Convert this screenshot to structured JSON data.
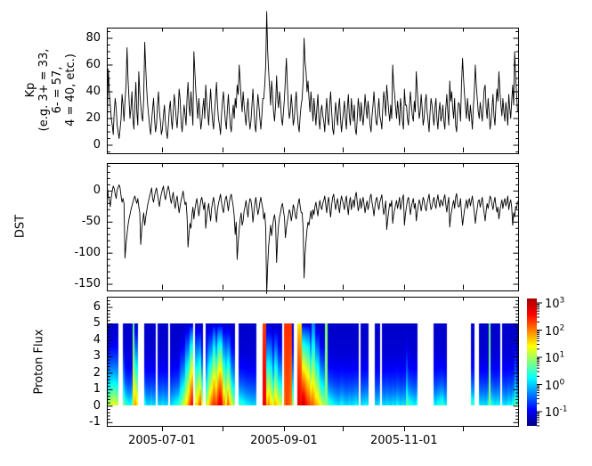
{
  "figure": {
    "background": "#ffffff",
    "line_color": "#000000"
  },
  "x_axis": {
    "start_date": "2005-06-03",
    "days_total": 209,
    "tick_labels": [
      "2005-07-01",
      "2005-09-01",
      "2005-11-01"
    ],
    "labeled_tick_days": [
      28,
      90,
      151
    ],
    "unlabeled_tick_days": [
      59,
      120,
      181
    ]
  },
  "chart_data": [
    {
      "id": "kp",
      "type": "line",
      "ylabel_lines": [
        "Kp",
        "(e.g. 3+ = 33,",
        "6- = 57,",
        "4 = 40, etc.)"
      ],
      "ylim": [
        -6,
        88
      ],
      "yticks": [
        0,
        20,
        40,
        60,
        80
      ],
      "ytick_minor_step": 5,
      "points_per_day": 2,
      "values": [
        22,
        57,
        40,
        30,
        20,
        15,
        8,
        25,
        35,
        28,
        15,
        10,
        5,
        12,
        20,
        38,
        30,
        18,
        33,
        45,
        73,
        50,
        35,
        20,
        28,
        40,
        20,
        12,
        30,
        47,
        25,
        15,
        55,
        40,
        30,
        22,
        18,
        35,
        77,
        58,
        42,
        30,
        22,
        14,
        8,
        18,
        27,
        35,
        20,
        10,
        15,
        30,
        40,
        25,
        18,
        8,
        12,
        22,
        30,
        17,
        10,
        5,
        15,
        27,
        33,
        20,
        12,
        25,
        38,
        30,
        20,
        13,
        25,
        42,
        35,
        18,
        10,
        20,
        30,
        23,
        15,
        35,
        47,
        30,
        22,
        40,
        28,
        15,
        70,
        55,
        40,
        30,
        20,
        35,
        25,
        12,
        18,
        28,
        35,
        20,
        45,
        33,
        25,
        15,
        30,
        42,
        28,
        18,
        12,
        25,
        35,
        47,
        30,
        20,
        15,
        8,
        22,
        33,
        40,
        28,
        18,
        12,
        27,
        38,
        25,
        15,
        10,
        22,
        30,
        20,
        35,
        28,
        45,
        38,
        60,
        48,
        35,
        25,
        40,
        30,
        22,
        15,
        28,
        35,
        20,
        12,
        18,
        30,
        42,
        28,
        15,
        10,
        25,
        38,
        30,
        20,
        12,
        22,
        35,
        35,
        45,
        60,
        100,
        70,
        55,
        42,
        30,
        48,
        38,
        25,
        18,
        30,
        52,
        35,
        28,
        40,
        32,
        20,
        15,
        25,
        35,
        50,
        65,
        45,
        30,
        20,
        25,
        38,
        28,
        15,
        20,
        32,
        40,
        25,
        15,
        10,
        22,
        30,
        35,
        48,
        80,
        62,
        55,
        40,
        48,
        35,
        25,
        40,
        30,
        18,
        35,
        25,
        15,
        28,
        38,
        20,
        12,
        25,
        30,
        22,
        18,
        10,
        25,
        35,
        20,
        15,
        30,
        40,
        25,
        12,
        8,
        20,
        32,
        24,
        15,
        28,
        35,
        20,
        10,
        18,
        25,
        33,
        20,
        12,
        28,
        38,
        22,
        15,
        35,
        25,
        18,
        30,
        12,
        8,
        20,
        35,
        28,
        18,
        32,
        22,
        15,
        25,
        38,
        28,
        20,
        33,
        25,
        15,
        10,
        22,
        30,
        40,
        28,
        18,
        15,
        25,
        35,
        22,
        18,
        12,
        28,
        40,
        33,
        22,
        45,
        35,
        25,
        18,
        30,
        20,
        60,
        45,
        38,
        28,
        20,
        33,
        25,
        15,
        35,
        28,
        18,
        12,
        42,
        30,
        30,
        20,
        15,
        28,
        40,
        30,
        22,
        18,
        33,
        25,
        55,
        42,
        30,
        20,
        25,
        38,
        28,
        15,
        20,
        32,
        38,
        25,
        18,
        10,
        25,
        35,
        30,
        22,
        15,
        28,
        35,
        20,
        12,
        25,
        32,
        18,
        22,
        30,
        18,
        12,
        28,
        38,
        25,
        15,
        48,
        33,
        40,
        28,
        20,
        35,
        15,
        10,
        25,
        32,
        30,
        18,
        45,
        65,
        50,
        38,
        28,
        20,
        35,
        25,
        18,
        30,
        22,
        12,
        28,
        40,
        60,
        45,
        35,
        25,
        20,
        32,
        25,
        18,
        30,
        42,
        45,
        28,
        20,
        35,
        25,
        12,
        18,
        28,
        38,
        22,
        15,
        30,
        42,
        33,
        55,
        40,
        30,
        22,
        35,
        25,
        18,
        32,
        25,
        15,
        38,
        28,
        20,
        33,
        45,
        30,
        70,
        52,
        38,
        25
      ]
    },
    {
      "id": "dst",
      "type": "line",
      "ylabel": "DST",
      "ylim": [
        -160,
        45
      ],
      "yticks": [
        0,
        -50,
        -100,
        -150
      ],
      "ytick_minor_step": 10,
      "points_per_day": 2,
      "values": [
        5,
        -8,
        -15,
        -25,
        -10,
        0,
        8,
        4,
        -5,
        -12,
        2,
        6,
        10,
        5,
        -8,
        -18,
        -12,
        -20,
        -108,
        -85,
        -70,
        -55,
        -45,
        -38,
        -30,
        -24,
        -18,
        -12,
        -8,
        -15,
        -20,
        -12,
        -25,
        -35,
        -86,
        -62,
        -48,
        -35,
        -55,
        -42,
        -32,
        -22,
        -15,
        -8,
        -2,
        5,
        -12,
        -18,
        -8,
        0,
        5,
        -5,
        -15,
        -25,
        -12,
        -4,
        2,
        8,
        -6,
        -14,
        -5,
        2,
        8,
        0,
        -12,
        -20,
        -10,
        -2,
        -18,
        -28,
        -15,
        -8,
        -22,
        -35,
        -25,
        -15,
        -8,
        0,
        -12,
        -22,
        -18,
        -40,
        -90,
        -68,
        -52,
        -60,
        -38,
        -26,
        -45,
        -30,
        -20,
        -12,
        -25,
        -40,
        -28,
        -15,
        -10,
        -20,
        -30,
        -18,
        -60,
        -42,
        -30,
        -20,
        -35,
        -48,
        -28,
        -18,
        -10,
        -22,
        -35,
        -50,
        -30,
        -20,
        -12,
        -5,
        -18,
        -28,
        -35,
        -22,
        -12,
        -8,
        -20,
        -32,
        -18,
        -10,
        -5,
        -15,
        -25,
        -40,
        -70,
        -50,
        -110,
        -82,
        -62,
        -45,
        -35,
        -55,
        -48,
        -32,
        -25,
        -15,
        -30,
        -42,
        -22,
        -12,
        -15,
        -28,
        -50,
        -35,
        -20,
        -10,
        -25,
        -38,
        -30,
        -18,
        -10,
        -20,
        -28,
        -45,
        -35,
        -60,
        -165,
        -120,
        -88,
        -70,
        -55,
        -72,
        -58,
        -45,
        -38,
        -52,
        -115,
        -78,
        -55,
        -42,
        -35,
        -25,
        -20,
        -32,
        -42,
        -75,
        -60,
        -48,
        -40,
        -30,
        -35,
        -48,
        -38,
        -22,
        -28,
        -40,
        -45,
        -30,
        -20,
        -12,
        -25,
        -35,
        -35,
        -60,
        -140,
        -100,
        -80,
        -62,
        -50,
        -55,
        -42,
        -32,
        -45,
        -30,
        -38,
        -25,
        -18,
        -30,
        -40,
        -25,
        -15,
        -25,
        -30,
        -20,
        -15,
        -8,
        -22,
        -35,
        -18,
        -10,
        -28,
        -42,
        -22,
        -10,
        -5,
        -18,
        -30,
        -20,
        -12,
        -25,
        -35,
        -18,
        -8,
        -15,
        -22,
        -30,
        -16,
        -8,
        -25,
        -38,
        -18,
        -10,
        -30,
        -20,
        -14,
        -26,
        -8,
        -2,
        -18,
        -32,
        -24,
        -12,
        -28,
        -18,
        -10,
        -22,
        -35,
        -24,
        -16,
        -30,
        -22,
        -10,
        -5,
        -18,
        -28,
        -40,
        -24,
        -14,
        -10,
        -22,
        -30,
        -18,
        -12,
        -6,
        -25,
        -38,
        -28,
        -16,
        -62,
        -45,
        -32,
        -20,
        -25,
        -15,
        -52,
        -38,
        -30,
        -22,
        -15,
        -28,
        -20,
        -10,
        -30,
        -22,
        -12,
        -6,
        -55,
        -38,
        -25,
        -15,
        -10,
        -22,
        -38,
        -26,
        -18,
        -12,
        -28,
        -20,
        -48,
        -34,
        -24,
        -14,
        -20,
        -32,
        -22,
        -10,
        -15,
        -26,
        -32,
        -20,
        -12,
        -5,
        -20,
        -30,
        -25,
        -16,
        -10,
        -22,
        -28,
        -15,
        -6,
        -18,
        -26,
        -14,
        -18,
        -24,
        -12,
        -6,
        -22,
        -34,
        -20,
        -10,
        -58,
        -40,
        -32,
        -22,
        -15,
        -28,
        -10,
        -4,
        -20,
        -26,
        -24,
        -12,
        -35,
        -55,
        -42,
        -30,
        -22,
        -14,
        -28,
        -18,
        -12,
        -24,
        -16,
        -8,
        -22,
        -34,
        -52,
        -38,
        -28,
        -16,
        -14,
        -26,
        -18,
        -10,
        -24,
        -36,
        -48,
        -32,
        -20,
        -28,
        -18,
        -8,
        -12,
        -22,
        -30,
        -18,
        -10,
        -24,
        -34,
        -26,
        -45,
        -32,
        -22,
        -14,
        -28,
        -18,
        -12,
        -24,
        -18,
        -8,
        -30,
        -20,
        -14,
        -26,
        -55,
        -35,
        -42,
        -25,
        -28,
        -16
      ]
    },
    {
      "id": "proton_flux",
      "type": "heatmap",
      "ylabel": "Proton Flux",
      "ylim": [
        -1.2,
        6.65
      ],
      "yticks": [
        -1,
        0,
        1,
        2,
        3,
        4,
        5,
        6
      ],
      "ytick_minor_step": 0.2,
      "strip_y_range": [
        0,
        5
      ],
      "value_scale": "log10",
      "color_range_log10": [
        -1.5,
        3.2
      ],
      "colormap": "jet",
      "top_log10_default": -1.15,
      "top_overrides": {
        "13": 0.7,
        "79": 2.3,
        "80": 2.3,
        "90": 2.4,
        "91": 2.4,
        "92": 2.4,
        "93": 2.4,
        "97": 1.5,
        "98": 1.5,
        "104": -0.3,
        "105": -0.3,
        "111": 0.9,
        "194": 0.8
      },
      "bottom_log10_by_day": [
        1.0,
        1.2,
        1.3,
        1.4,
        1.3,
        1.2,
        null,
        null,
        0.8,
        0.6,
        0.4,
        0.3,
        0.5,
        1.6,
        1.9,
        1.6,
        null,
        null,
        null,
        0.4,
        0.1,
        0.1,
        0.2,
        0.1,
        0.1,
        null,
        0.1,
        0.1,
        0.2,
        0.1,
        0.1,
        null,
        0.1,
        0.2,
        0.3,
        0.4,
        0.6,
        0.8,
        1.0,
        1.3,
        1.6,
        2.0,
        2.4,
        2.7,
        null,
        1.6,
        1.9,
        2.3,
        1.4,
        null,
        1.2,
        1.5,
        1.9,
        2.2,
        2.4,
        2.3,
        2.6,
        2.9,
        2.7,
        2.0,
        1.5,
        2.2,
        1.8,
        1.4,
        1.0,
        null,
        null,
        0.6,
        0.5,
        0.4,
        0.3,
        0.2,
        0.2,
        0.1,
        0.1,
        0.1,
        null,
        null,
        null,
        2.8,
        2.7,
        1.8,
        2.0,
        1.6,
        1.4,
        1.8,
        1.6,
        1.4,
        1.2,
        null,
        2.1,
        2.3,
        2.2,
        2.0,
        1.0,
        null,
        null,
        2.8,
        2.6,
        3.0,
        2.9,
        2.6,
        2.4,
        2.2,
        2.2,
        2.0,
        1.8,
        1.6,
        1.4,
        1.2,
        1.0,
        0.9,
        0.7,
        0.5,
        0.4,
        0.3,
        0.2,
        0.1,
        0.2,
        0.3,
        0.2,
        0.1,
        0.1,
        0.2,
        0.1,
        0.2,
        0.3,
        0.2,
        null,
        0.1,
        0.2,
        0.3,
        0.2,
        null,
        null,
        null,
        0.1,
        0.1,
        0.2,
        null,
        0.1,
        0.1,
        0.2,
        0.1,
        0.1,
        0.2,
        0.1,
        0.3,
        0.2,
        0.1,
        0.2,
        0.1,
        0.8,
        0.6,
        0.4,
        0.3,
        0.2,
        0.4,
        null,
        null,
        null,
        null,
        null,
        null,
        null,
        null,
        0.3,
        0.2,
        0.4,
        0.5,
        0.6,
        0.3,
        0.2,
        null,
        null,
        null,
        null,
        null,
        null,
        null,
        null,
        null,
        null,
        null,
        null,
        0.6,
        0.5,
        null,
        null,
        0.2,
        0.1,
        0.2,
        0.1,
        0.3,
        1.0,
        0.4,
        0.3,
        0.2,
        0.3,
        0.2,
        null,
        0.2,
        0.1,
        0.2,
        0.3,
        0.2,
        0.4,
        0.8,
        0.6
      ],
      "colorbar": {
        "label_base": "10",
        "tick_exponents": [
          3,
          2,
          1,
          0,
          -1
        ]
      }
    }
  ]
}
